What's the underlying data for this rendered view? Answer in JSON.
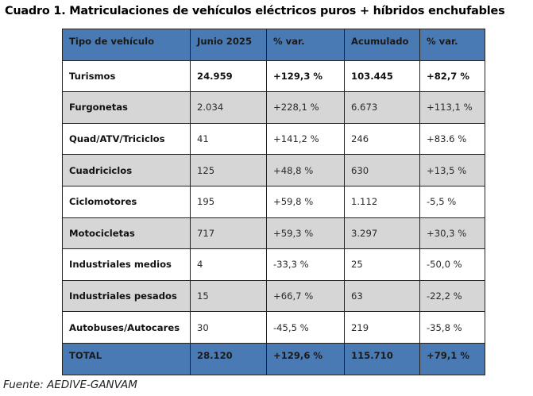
{
  "title": "Cuadro 1. Matriculaciones de vehículos eléctricos puros + híbridos enchufables",
  "table": {
    "headers": [
      "Tipo de vehículo",
      "Junio 2025",
      "% var.",
      "Acumulado",
      "% var."
    ],
    "rows": [
      [
        "Turismos",
        "24.959",
        "+129,3 %",
        "103.445",
        "+82,7 %"
      ],
      [
        "Furgonetas",
        "2.034",
        "+228,1 %",
        "6.673",
        "+113,1 %"
      ],
      [
        "Quad/ATV/Triciclos",
        "41",
        "+141,2 %",
        "246",
        "+83.6 %"
      ],
      [
        "Cuadriciclos",
        "125",
        "+48,8 %",
        "630",
        "+13,5 %"
      ],
      [
        "Ciclomotores",
        "195",
        "+59,8 %",
        "1.112",
        "-5,5 %"
      ],
      [
        "Motocicletas",
        "717",
        "+59,3 %",
        "3.297",
        "+30,3 %"
      ],
      [
        "Industriales medios",
        "4",
        "-33,3 %",
        "25",
        "-50,0 %"
      ],
      [
        "Industriales pesados",
        "15",
        "+66,7 %",
        "63",
        "-22,2 %"
      ],
      [
        "Autobuses/Autocares",
        "30",
        "-45,5 %",
        "219",
        "-35,8 %"
      ]
    ],
    "total": [
      "TOTAL",
      "28.120",
      "+129,6 %",
      "115.710",
      "+79,1 %"
    ]
  },
  "source": "Fuente: AEDIVE-GANVAM",
  "colors": {
    "header_bg": "#4a7ab4",
    "stripe_bg": "#d6d6d6"
  }
}
